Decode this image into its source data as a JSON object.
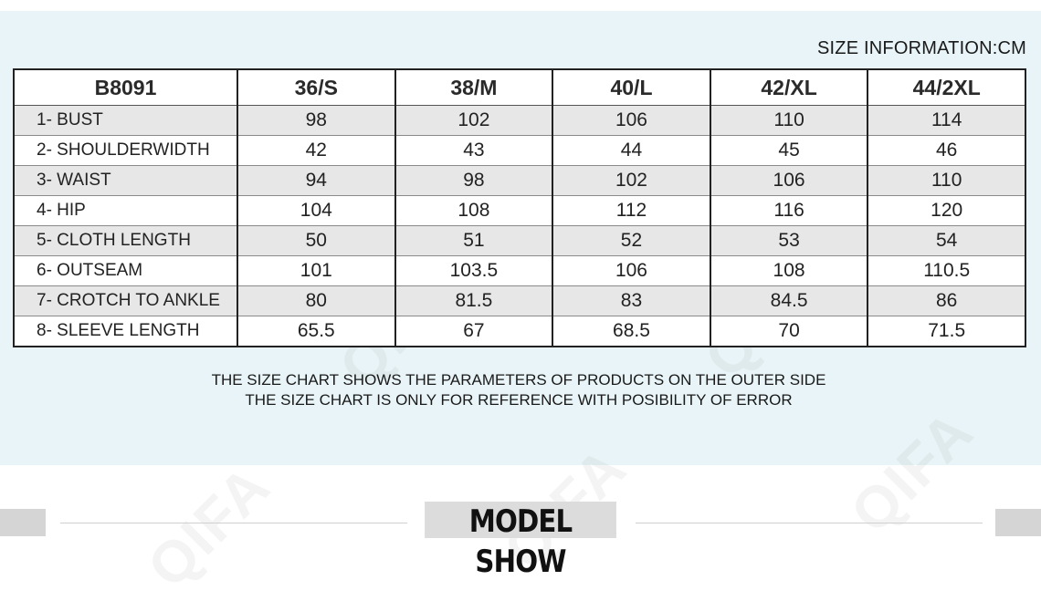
{
  "header": {
    "size_info": "SIZE INFORMATION:CM"
  },
  "table": {
    "columns": [
      "B8091",
      "36/S",
      "38/M",
      "40/L",
      "42/XL",
      "44/2XL"
    ],
    "rows": [
      {
        "label": "1- BUST",
        "values": [
          "98",
          "102",
          "106",
          "110",
          "114"
        ]
      },
      {
        "label": "2- SHOULDERWIDTH",
        "values": [
          "42",
          "43",
          "44",
          "45",
          "46"
        ]
      },
      {
        "label": "3- WAIST",
        "values": [
          "94",
          "98",
          "102",
          "106",
          "110"
        ]
      },
      {
        "label": "4- HIP",
        "values": [
          "104",
          "108",
          "112",
          "116",
          "120"
        ]
      },
      {
        "label": "5- CLOTH LENGTH",
        "values": [
          "50",
          "51",
          "52",
          "53",
          "54"
        ]
      },
      {
        "label": "6- OUTSEAM",
        "values": [
          "101",
          "103.5",
          "106",
          "108",
          "110.5"
        ]
      },
      {
        "label": "7- CROTCH TO ANKLE",
        "values": [
          "80",
          "81.5",
          "83",
          "84.5",
          "86"
        ]
      },
      {
        "label": "8- SLEEVE LENGTH",
        "values": [
          "65.5",
          "67",
          "68.5",
          "70",
          "71.5"
        ]
      }
    ]
  },
  "notes": {
    "line1": "THE SIZE CHART SHOWS THE PARAMETERS OF PRODUCTS ON THE OUTER SIDE",
    "line2": "THE SIZE CHART IS ONLY FOR REFERENCE WITH POSIBILITY OF ERROR"
  },
  "section": {
    "title": "MODEL SHOW"
  },
  "watermark": {
    "text": "QIFA"
  },
  "colors": {
    "panel": "#e8f4f7",
    "row_alt": "#e7e7e7",
    "border": "#222222"
  }
}
